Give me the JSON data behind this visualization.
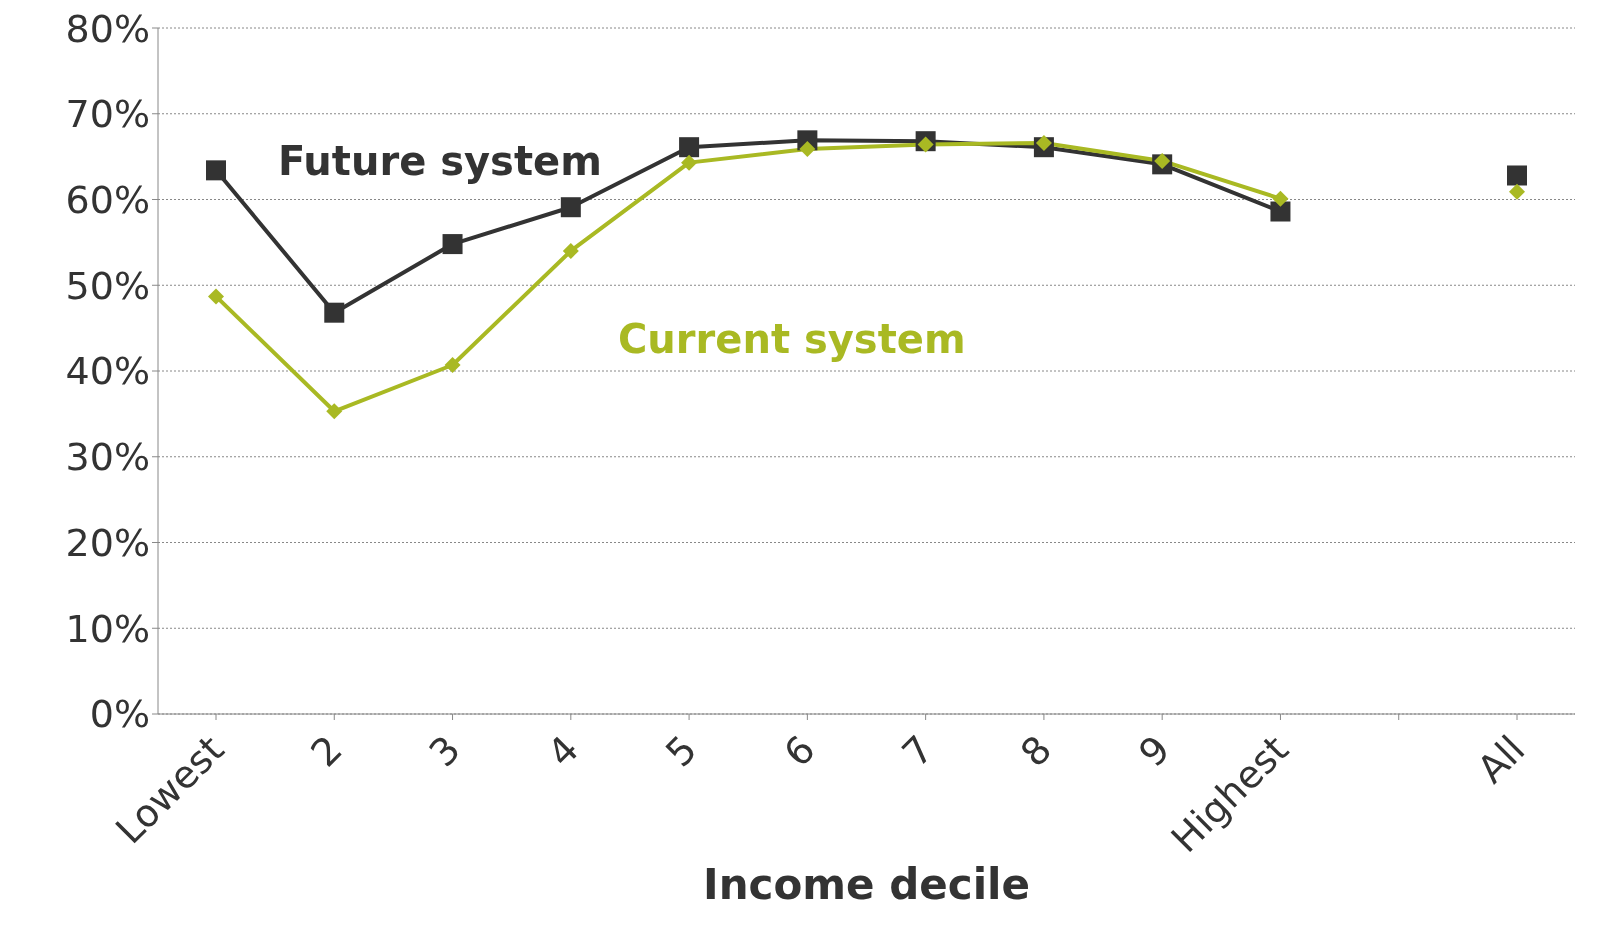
{
  "chart_data": {
    "type": "line",
    "xlabel": "Income decile",
    "categories": [
      "Lowest",
      "2",
      "3",
      "4",
      "5",
      "6",
      "7",
      "8",
      "9",
      "Highest",
      null,
      "All"
    ],
    "series": [
      {
        "name": "Future system",
        "color": "#333333",
        "marker": "square",
        "values": [
          63.4,
          46.8,
          54.8,
          59.1,
          66.1,
          66.9,
          66.8,
          66.1,
          64.1,
          58.6,
          null,
          62.8
        ]
      },
      {
        "name": "Current system",
        "color": "#a9b923",
        "marker": "diamond",
        "values": [
          48.7,
          35.3,
          40.7,
          54.0,
          64.3,
          65.9,
          66.4,
          66.6,
          64.5,
          60.1,
          null,
          60.9
        ]
      }
    ],
    "ylim": [
      0,
      80
    ],
    "yticks": [
      {
        "value": 0,
        "label": "0%"
      },
      {
        "value": 10,
        "label": "10%"
      },
      {
        "value": 20,
        "label": "20%"
      },
      {
        "value": 30,
        "label": "30%"
      },
      {
        "value": 40,
        "label": "40%"
      },
      {
        "value": 50,
        "label": "50%"
      },
      {
        "value": 60,
        "label": "60%"
      },
      {
        "value": 70,
        "label": "70%"
      },
      {
        "value": 80,
        "label": "80%"
      }
    ],
    "grid": "y"
  }
}
